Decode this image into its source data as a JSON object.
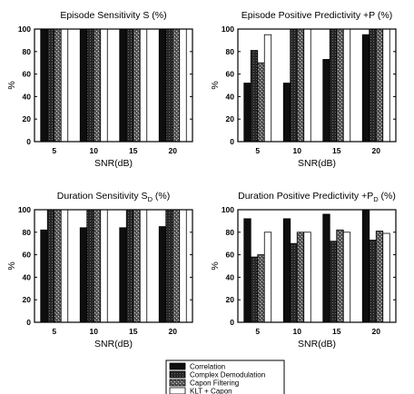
{
  "chart_data": [
    {
      "type": "bar",
      "title": "Episode Sensitivity S (%)",
      "title_main": "Episode Sensitivity S (%)",
      "title_sub": "",
      "title_after": "",
      "xlabel": "SNR(dB)",
      "ylabel": "%",
      "categories": [
        "5",
        "10",
        "15",
        "20"
      ],
      "ylim": [
        0,
        100
      ],
      "yticks": [
        "0",
        "20",
        "40",
        "60",
        "80",
        "100"
      ],
      "series": [
        {
          "name": "Correlation",
          "values": [
            100,
            100,
            100,
            100
          ]
        },
        {
          "name": "Complex Demodulation",
          "values": [
            100,
            100,
            100,
            100
          ]
        },
        {
          "name": "Capon Filtering",
          "values": [
            100,
            100,
            100,
            100
          ]
        },
        {
          "name": "KLT + Capon",
          "values": [
            100,
            100,
            100,
            100
          ]
        }
      ]
    },
    {
      "type": "bar",
      "title": "Episode Positive Predictivity +P (%)",
      "title_main": "Episode Positive Predictivity +P (%)",
      "title_sub": "",
      "title_after": "",
      "xlabel": "SNR(dB)",
      "ylabel": "%",
      "categories": [
        "5",
        "10",
        "15",
        "20"
      ],
      "ylim": [
        0,
        100
      ],
      "yticks": [
        "0",
        "20",
        "40",
        "60",
        "80",
        "100"
      ],
      "series": [
        {
          "name": "Correlation",
          "values": [
            52,
            52,
            73,
            95
          ]
        },
        {
          "name": "Complex Demodulation",
          "values": [
            81,
            100,
            100,
            100
          ]
        },
        {
          "name": "Capon Filtering",
          "values": [
            70,
            100,
            100,
            100
          ]
        },
        {
          "name": "KLT + Capon",
          "values": [
            95,
            100,
            100,
            100
          ]
        }
      ]
    },
    {
      "type": "bar",
      "title": "Duration Sensitivity SD (%)",
      "title_main": "Duration Sensitivity S",
      "title_sub": "D",
      "title_after": " (%)",
      "xlabel": "SNR(dB)",
      "ylabel": "%",
      "categories": [
        "5",
        "10",
        "15",
        "20"
      ],
      "ylim": [
        0,
        100
      ],
      "yticks": [
        "0",
        "20",
        "40",
        "60",
        "80",
        "100"
      ],
      "series": [
        {
          "name": "Correlation",
          "values": [
            82,
            84,
            84,
            85
          ]
        },
        {
          "name": "Complex Demodulation",
          "values": [
            100,
            100,
            100,
            100
          ]
        },
        {
          "name": "Capon Filtering",
          "values": [
            100,
            100,
            100,
            100
          ]
        },
        {
          "name": "KLT + Capon",
          "values": [
            100,
            100,
            100,
            100
          ]
        }
      ]
    },
    {
      "type": "bar",
      "title": "Duration Positive Predictivity +PD (%)",
      "title_main": "Duration Positive Predictivity +P",
      "title_sub": "D",
      "title_after": " (%)",
      "xlabel": "SNR(dB)",
      "ylabel": "%",
      "categories": [
        "5",
        "10",
        "15",
        "20"
      ],
      "ylim": [
        0,
        100
      ],
      "yticks": [
        "0",
        "20",
        "40",
        "60",
        "80",
        "100"
      ],
      "series": [
        {
          "name": "Correlation",
          "values": [
            92,
            92,
            96,
            100
          ]
        },
        {
          "name": "Complex Demodulation",
          "values": [
            58,
            70,
            72,
            73
          ]
        },
        {
          "name": "Capon Filtering",
          "values": [
            60,
            80,
            82,
            81
          ]
        },
        {
          "name": "KLT + Capon",
          "values": [
            80,
            80,
            80,
            79
          ]
        }
      ]
    }
  ],
  "legend": {
    "placement": "bottom-center",
    "entries": [
      "Correlation",
      "Complex Demodulation",
      "Capon Filtering",
      "KLT + Capon"
    ]
  }
}
